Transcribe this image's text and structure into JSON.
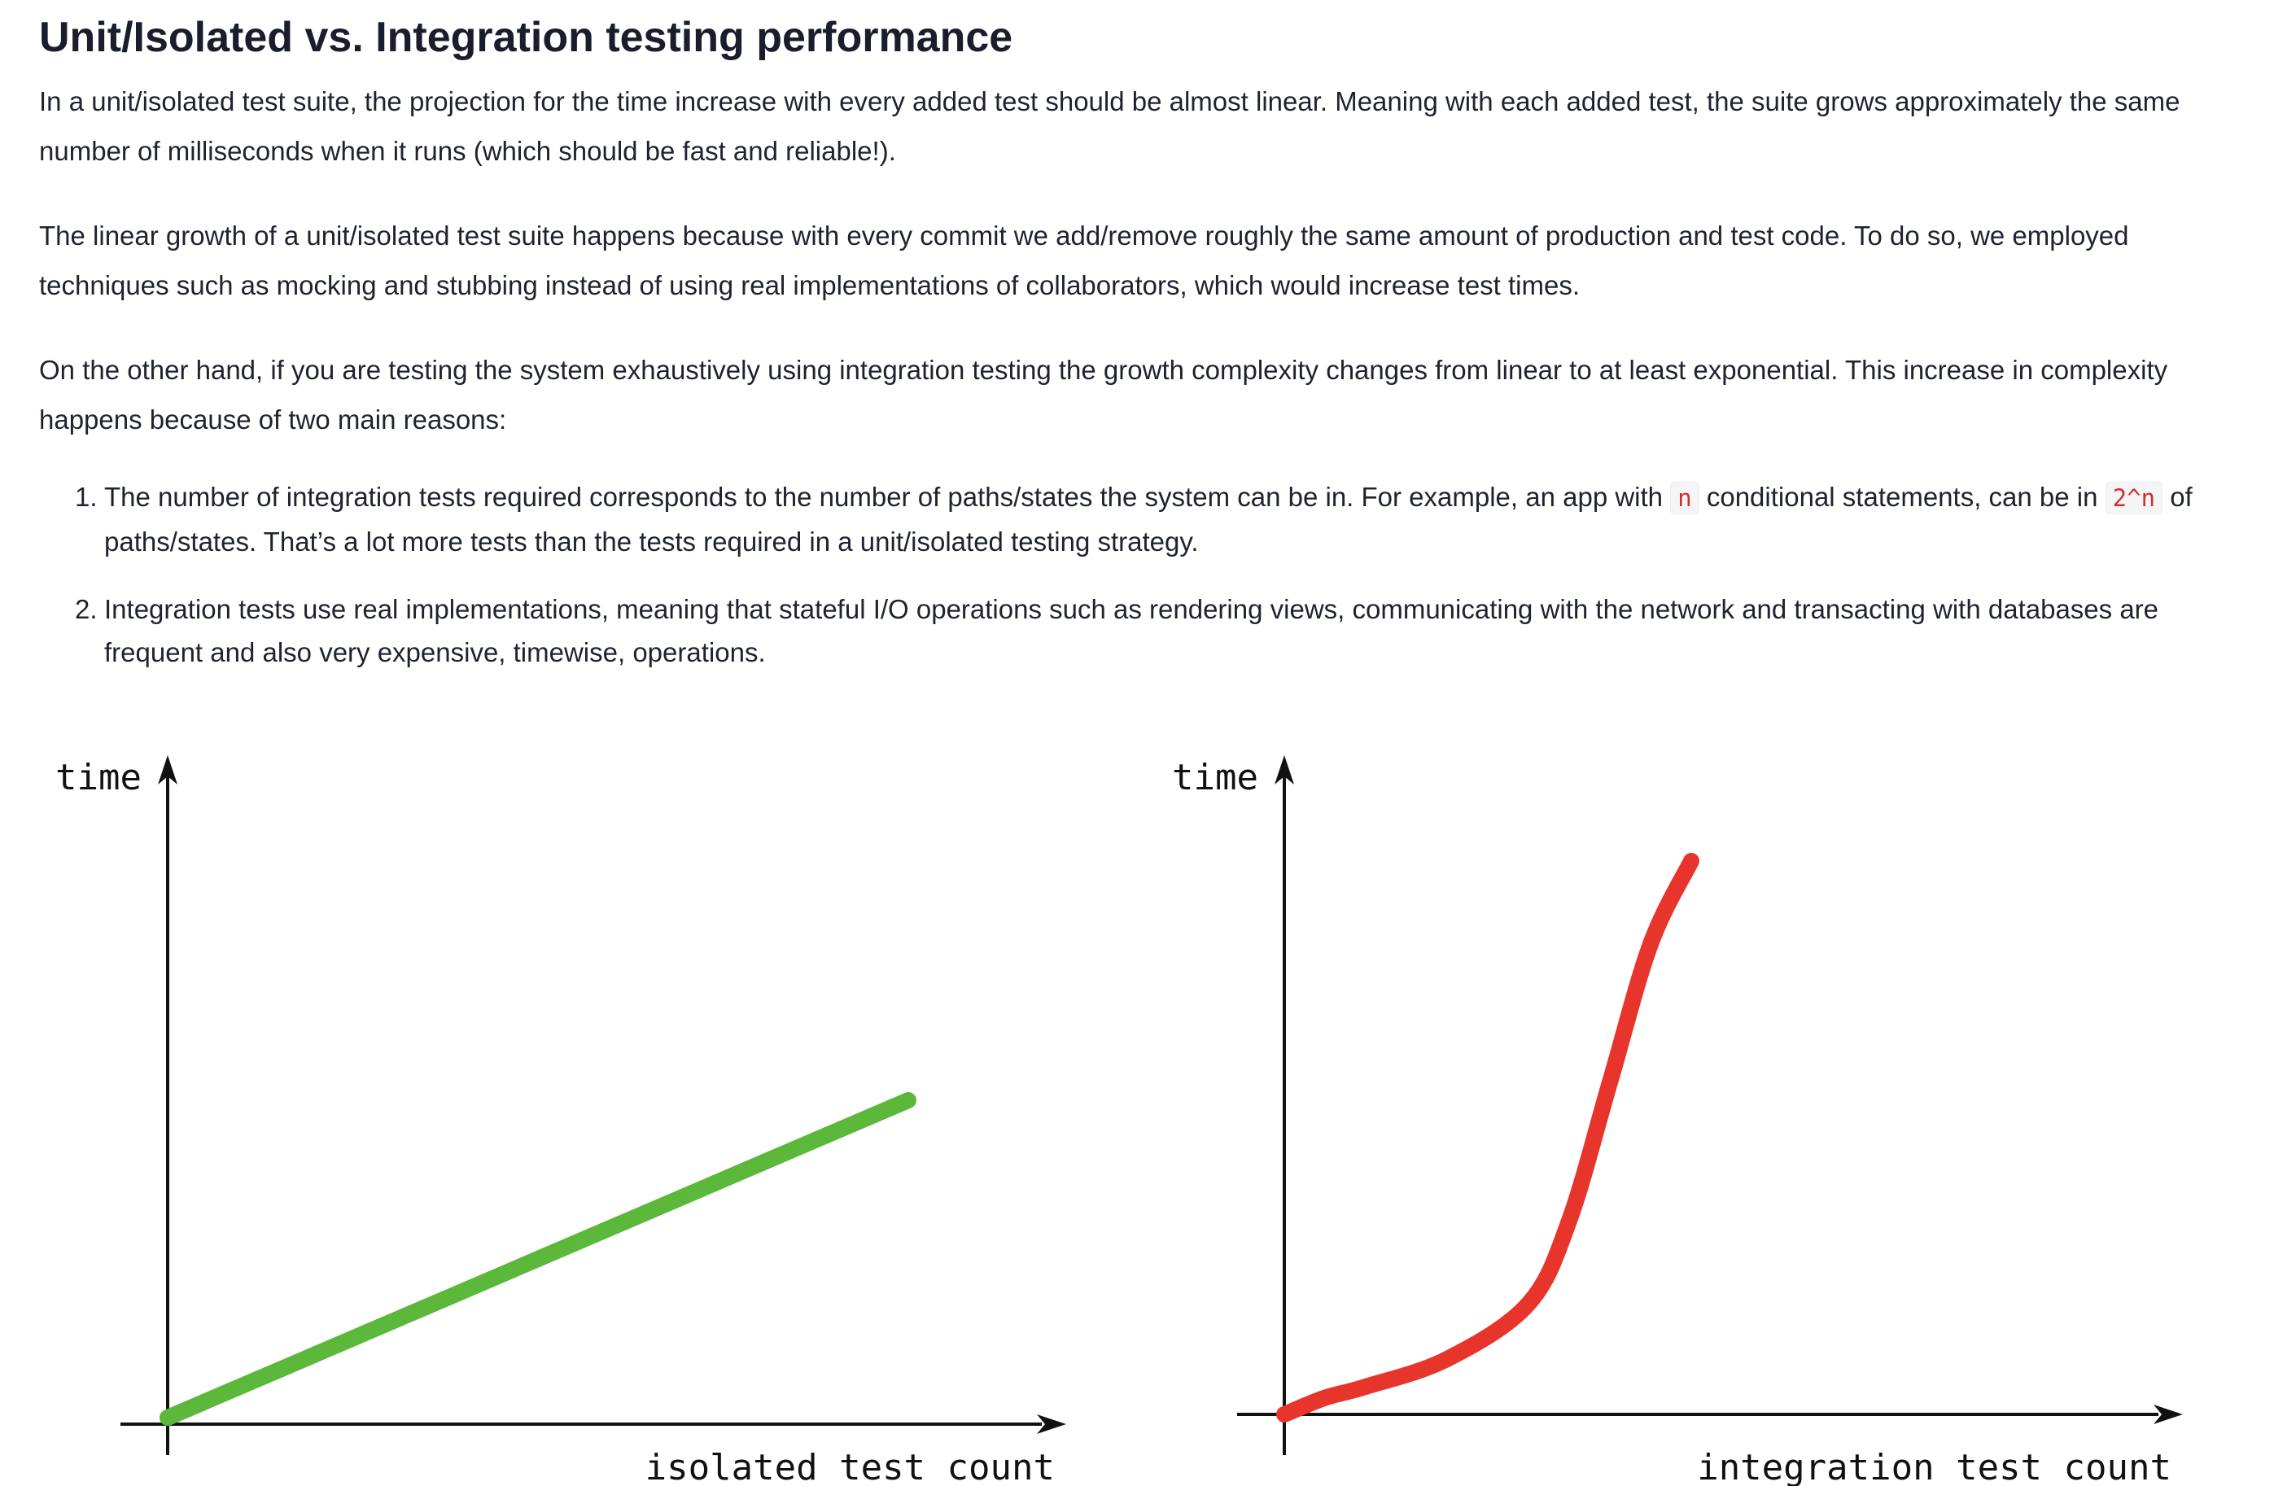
{
  "article": {
    "title": "Unit/Isolated vs. Integration testing performance",
    "paragraphs": [
      "In a unit/isolated test suite, the projection for the time increase with every added test should be almost linear. Meaning with each added test, the suite grows approximately the same number of milliseconds when it runs (which should be fast and reliable!).",
      "The linear growth of a unit/isolated test suite happens because with every commit we add/remove roughly the same amount of production and test code. To do so, we employed techniques such as mocking and stubbing instead of using real implementations of collaborators, which would increase test times.",
      "On the other hand, if you are testing the system exhaustively using integration testing the growth complexity changes from linear to at least exponential. This increase in complexity happens because of two main reasons:"
    ],
    "list": [
      {
        "number": "1.",
        "text_before": "The number of integration tests required corresponds to the number of paths/states the system can be in. For example, an app with",
        "code_1": "n",
        "text_middle": "conditional statements, can be in",
        "code_2": "2^n",
        "text_after": "of paths/states. That’s a lot more tests than the tests required in a unit/isolated testing strategy."
      },
      {
        "number": "2.",
        "text": "Integration tests use real implementations, meaning that stateful I/O operations such as rendering views, communicating with the network and transacting with databases are frequent and also very expensive, timewise, operations."
      }
    ]
  },
  "chart_data": [
    {
      "type": "line",
      "ylabel": "time",
      "xlabel": "isolated test count",
      "series": [
        {
          "color": "#5bb83a",
          "x": [
            0,
            1
          ],
          "y": [
            0,
            0.75
          ]
        }
      ],
      "grid": false
    },
    {
      "type": "line",
      "ylabel": "time",
      "xlabel": "integration test count",
      "series": [
        {
          "color": "#e8352c",
          "x": [
            0,
            0.05,
            0.1,
            0.2,
            0.3,
            0.35,
            0.4,
            0.45,
            0.5
          ],
          "y": [
            0,
            0.03,
            0.05,
            0.1,
            0.2,
            0.35,
            0.6,
            0.85,
            1.0
          ]
        }
      ],
      "grid": false
    }
  ]
}
